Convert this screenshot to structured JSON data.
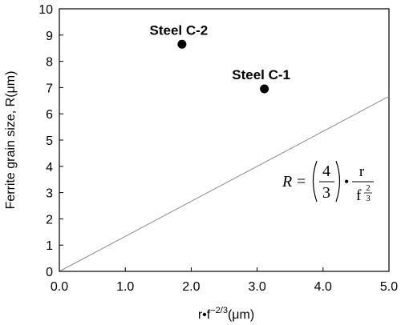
{
  "chart_data": {
    "type": "scatter",
    "xlabel": {
      "main": "r•f",
      "sup": "−2/3",
      "unit": "(μm)"
    },
    "ylabel": "Ferrite grain size, R(μm)",
    "xlim": [
      0,
      5
    ],
    "ylim": [
      0,
      10
    ],
    "x_ticks": [
      "0.0",
      "1.0",
      "2.0",
      "3.0",
      "4.0",
      "5.0"
    ],
    "y_ticks": [
      "0",
      "1",
      "2",
      "3",
      "4",
      "5",
      "6",
      "7",
      "8",
      "9",
      "10"
    ],
    "grid": false,
    "points": [
      {
        "label": "Steel C-2",
        "x": 1.86,
        "y": 8.65
      },
      {
        "label": "Steel C-1",
        "x": 3.11,
        "y": 6.95
      }
    ],
    "line": {
      "slope": 1.3333,
      "x_range": [
        0,
        5
      ]
    },
    "equation": {
      "lhs": "R",
      "equals": "=",
      "num": "4",
      "den": "3",
      "dot": "•",
      "r": "r",
      "f": "f",
      "exp_num": "2",
      "exp_den": "3"
    },
    "colors": {
      "line": "#8c8c8c",
      "marker": "#000000"
    }
  }
}
